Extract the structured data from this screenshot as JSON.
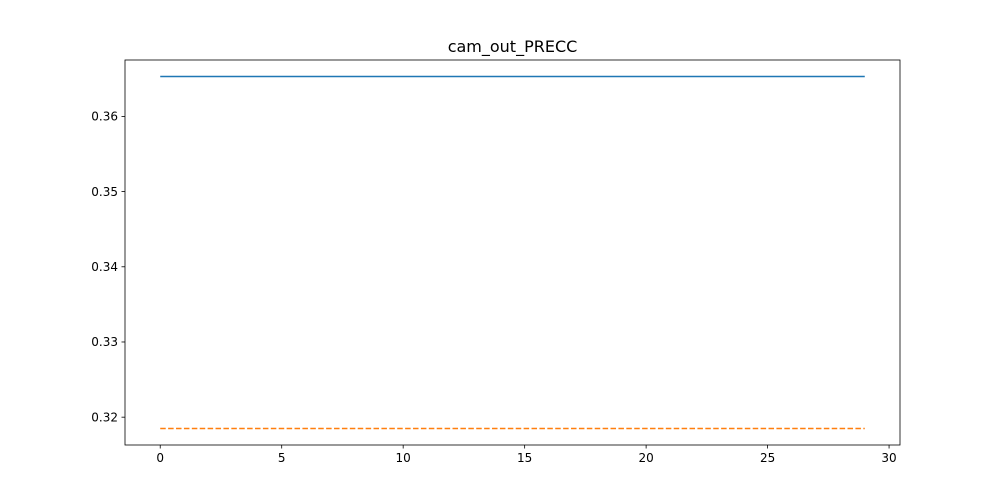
{
  "chart_data": {
    "type": "line",
    "title": "cam_out_PRECC",
    "xlabel": "",
    "ylabel": "",
    "xlim": [
      -1.45,
      30.45
    ],
    "ylim": [
      0.3163,
      0.3675
    ],
    "x_ticks": [
      0,
      5,
      10,
      15,
      20,
      25,
      30
    ],
    "y_ticks": [
      0.32,
      0.33,
      0.34,
      0.35,
      0.36
    ],
    "x_tick_labels": [
      "0",
      "5",
      "10",
      "15",
      "20",
      "25",
      "30"
    ],
    "y_tick_labels": [
      "0.32",
      "0.33",
      "0.34",
      "0.35",
      "0.36"
    ],
    "grid": false,
    "series": [
      {
        "color": "#1f77b4",
        "linestyle": "solid",
        "x": [
          0,
          1,
          2,
          3,
          4,
          5,
          6,
          7,
          8,
          9,
          10,
          11,
          12,
          13,
          14,
          15,
          16,
          17,
          18,
          19,
          20,
          21,
          22,
          23,
          24,
          25,
          26,
          27,
          28,
          29
        ],
        "values": [
          0.3653,
          0.3653,
          0.3653,
          0.3653,
          0.3653,
          0.3653,
          0.3653,
          0.3653,
          0.3653,
          0.3653,
          0.3653,
          0.3653,
          0.3653,
          0.3653,
          0.3653,
          0.3653,
          0.3653,
          0.3653,
          0.3653,
          0.3653,
          0.3653,
          0.3653,
          0.3653,
          0.3653,
          0.3653,
          0.3653,
          0.3653,
          0.3653,
          0.3653,
          0.3653
        ]
      },
      {
        "color": "#ff7f0e",
        "linestyle": "dashed",
        "x": [
          0,
          1,
          2,
          3,
          4,
          5,
          6,
          7,
          8,
          9,
          10,
          11,
          12,
          13,
          14,
          15,
          16,
          17,
          18,
          19,
          20,
          21,
          22,
          23,
          24,
          25,
          26,
          27,
          28,
          29
        ],
        "values": [
          0.3185,
          0.3185,
          0.3185,
          0.3185,
          0.3185,
          0.3185,
          0.3185,
          0.3185,
          0.3185,
          0.3185,
          0.3185,
          0.3185,
          0.3185,
          0.3185,
          0.3185,
          0.3185,
          0.3185,
          0.3185,
          0.3185,
          0.3185,
          0.3185,
          0.3185,
          0.3185,
          0.3185,
          0.3185,
          0.3185,
          0.3185,
          0.3185,
          0.3185,
          0.3185
        ]
      }
    ]
  }
}
